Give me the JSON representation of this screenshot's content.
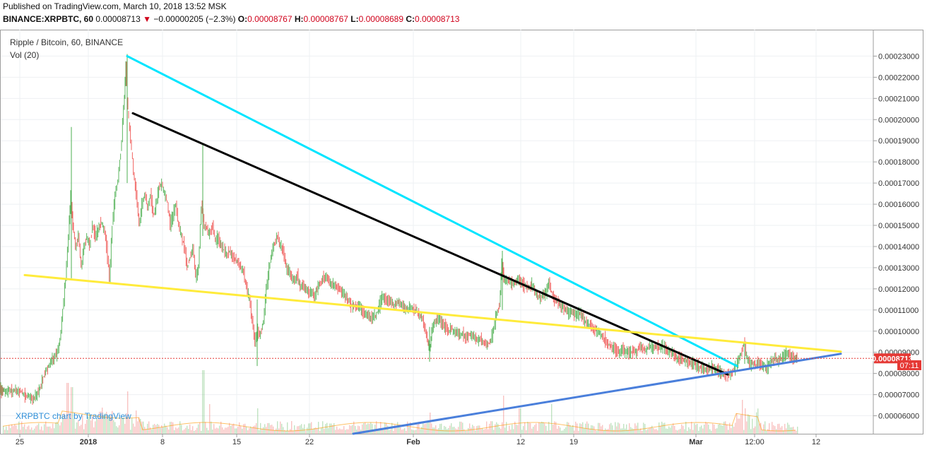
{
  "header": {
    "published": "Published on TradingView.com, March 10, 2018 13:52 MSK",
    "symbol": "BINANCE:XRPBTC, 60",
    "last": "0.00008713",
    "change_arrow": "▼",
    "change": "−0.00000205 (−2.3%)",
    "o_label": "O:",
    "o": "0.00008767",
    "h_label": "H:",
    "h": "0.00008767",
    "l_label": "L:",
    "l": "0.00008689",
    "c_label": "C:",
    "c": "0.00008713"
  },
  "legend": {
    "title": "Ripple / Bitcoin, 60, BINANCE",
    "vol": "Vol (20)"
  },
  "watermark": "XRPBTC chart by TradingView",
  "chart_data": {
    "type": "line",
    "title": "Ripple / Bitcoin, 60, BINANCE",
    "y_ticks": [
      "0.00023000",
      "0.00022000",
      "0.00021000",
      "0.00020000",
      "0.00019000",
      "0.00018000",
      "0.00017000",
      "0.00016000",
      "0.00015000",
      "0.00014000",
      "0.00013000",
      "0.00012000",
      "0.00011000",
      "0.00010000",
      "0.00009000",
      "0.00008000",
      "0.00007000",
      "0.00006000"
    ],
    "y_tick_values": [
      0.00023,
      0.00022,
      0.00021,
      0.0002,
      0.00019,
      0.00018,
      0.00017,
      0.00016,
      0.00015,
      0.00014,
      0.00013,
      0.00012,
      0.00011,
      0.0001,
      9e-05,
      8e-05,
      7e-05,
      6e-05
    ],
    "x_ticks": [
      "25",
      "2018",
      "8",
      "15",
      "22",
      "Feb",
      "12",
      "19",
      "Mar",
      "12:00",
      "12"
    ],
    "ylim": [
      5.15e-05,
      0.0002425
    ],
    "last_price_label": "0.00008713",
    "last_price": 8.713e-05,
    "countdown_label": "07:11",
    "price_series": {
      "name": "XRPBTC",
      "points": [
        [
          0,
          7.25e-05
        ],
        [
          3,
          7.18e-05
        ],
        [
          6,
          7.22e-05
        ],
        [
          10,
          7.1e-05
        ],
        [
          14,
          7.22e-05
        ],
        [
          18,
          7.15e-05
        ],
        [
          22,
          7.25e-05
        ],
        [
          26,
          7.12e-05
        ],
        [
          30,
          7.2e-05
        ],
        [
          34,
          7e-05
        ],
        [
          38,
          6.85e-05
        ],
        [
          42,
          7.02e-05
        ],
        [
          46,
          6.72e-05
        ],
        [
          50,
          6.9e-05
        ],
        [
          54,
          7.05e-05
        ],
        [
          58,
          7.4e-05
        ],
        [
          62,
          7.8e-05
        ],
        [
          66,
          8.1e-05
        ],
        [
          70,
          8.4e-05
        ],
        [
          74,
          8.6e-05
        ],
        [
          78,
          8.8e-05
        ],
        [
          82,
          9e-05
        ],
        [
          86,
          9.5e-05
        ],
        [
          90,
          0.00011
        ],
        [
          94,
          0.000125
        ],
        [
          98,
          0.000145
        ],
        [
          101,
          0.000165
        ],
        [
          104,
          0.00015
        ],
        [
          108,
          0.00014
        ],
        [
          112,
          0.000145
        ],
        [
          116,
          0.00013
        ],
        [
          120,
          0.00014
        ],
        [
          124,
          0.000145
        ],
        [
          128,
          0.00014
        ],
        [
          132,
          0.00015
        ],
        [
          136,
          0.000145
        ],
        [
          140,
          0.000148
        ],
        [
          144,
          0.000152
        ],
        [
          148,
          0.000148
        ],
        [
          152,
          0.00014
        ],
        [
          156,
          0.000125
        ],
        [
          160,
          0.00015
        ],
        [
          164,
          0.000165
        ],
        [
          168,
          0.000172
        ],
        [
          172,
          0.000185
        ],
        [
          176,
          0.000205
        ],
        [
          179,
          0.000225
        ],
        [
          182,
          0.000205
        ],
        [
          186,
          0.00019
        ],
        [
          190,
          0.000175
        ],
        [
          194,
          0.000165
        ],
        [
          198,
          0.00015
        ],
        [
          202,
          0.00016
        ],
        [
          206,
          0.000165
        ],
        [
          210,
          0.000158
        ],
        [
          214,
          0.000165
        ],
        [
          218,
          0.000155
        ],
        [
          222,
          0.00016
        ],
        [
          226,
          0.000168
        ],
        [
          230,
          0.00017
        ],
        [
          234,
          0.000165
        ],
        [
          238,
          0.00016
        ],
        [
          242,
          0.00015
        ],
        [
          246,
          0.000155
        ],
        [
          250,
          0.00016
        ],
        [
          254,
          0.00015
        ],
        [
          258,
          0.000145
        ],
        [
          262,
          0.00014
        ],
        [
          266,
          0.00013
        ],
        [
          270,
          0.000135
        ],
        [
          274,
          0.00014
        ],
        [
          278,
          0.000125
        ],
        [
          282,
          0.00013
        ],
        [
          286,
          0.00016
        ],
        [
          290,
          0.00015
        ],
        [
          294,
          0.000148
        ],
        [
          298,
          0.000145
        ],
        [
          302,
          0.00015
        ],
        [
          306,
          0.000142
        ],
        [
          310,
          0.000145
        ],
        [
          314,
          0.00014
        ],
        [
          318,
          0.000138
        ],
        [
          322,
          0.000136
        ],
        [
          326,
          0.000138
        ],
        [
          330,
          0.000135
        ],
        [
          334,
          0.000134
        ],
        [
          338,
          0.000132
        ],
        [
          342,
          0.00013
        ],
        [
          346,
          0.000128
        ],
        [
          350,
          0.00012
        ],
        [
          354,
          0.000115
        ],
        [
          358,
          0.000105
        ],
        [
          362,
          9.5e-05
        ],
        [
          366,
          0.0001
        ],
        [
          370,
          9.8e-05
        ],
        [
          374,
          0.000105
        ],
        [
          378,
          0.00012
        ],
        [
          382,
          0.00013
        ],
        [
          386,
          0.000138
        ],
        [
          390,
          0.000142
        ],
        [
          394,
          0.000145
        ],
        [
          398,
          0.00014
        ],
        [
          402,
          0.000138
        ],
        [
          406,
          0.00013
        ],
        [
          410,
          0.000128
        ],
        [
          414,
          0.000125
        ],
        [
          418,
          0.000124
        ],
        [
          422,
          0.000126
        ],
        [
          426,
          0.00012
        ],
        [
          430,
          0.000122
        ],
        [
          434,
          0.00012
        ],
        [
          438,
          0.000118
        ],
        [
          442,
          0.000118
        ],
        [
          446,
          0.000116
        ],
        [
          450,
          0.00012
        ],
        [
          454,
          0.000122
        ],
        [
          458,
          0.000125
        ],
        [
          462,
          0.000126
        ],
        [
          466,
          0.000124
        ],
        [
          470,
          0.000122
        ],
        [
          474,
          0.000122
        ],
        [
          478,
          0.00012
        ],
        [
          482,
          0.00012
        ],
        [
          486,
          0.000118
        ],
        [
          490,
          0.000116
        ],
        [
          494,
          0.000115
        ],
        [
          498,
          0.000112
        ],
        [
          502,
          0.000112
        ],
        [
          506,
          0.000111
        ],
        [
          510,
          0.000112
        ],
        [
          514,
          0.00011
        ],
        [
          518,
          0.000108
        ],
        [
          522,
          0.000108
        ],
        [
          526,
          0.000106
        ],
        [
          530,
          0.000107
        ],
        [
          534,
          0.000108
        ],
        [
          538,
          0.000112
        ],
        [
          542,
          0.000116
        ],
        [
          546,
          0.000115
        ],
        [
          550,
          0.000114
        ],
        [
          554,
          0.000114
        ],
        [
          558,
          0.000112
        ],
        [
          562,
          0.000113
        ],
        [
          566,
          0.000114
        ],
        [
          570,
          0.000112
        ],
        [
          574,
          0.000111
        ],
        [
          578,
          0.00011
        ],
        [
          582,
          0.000112
        ],
        [
          586,
          0.00011
        ],
        [
          590,
          0.00011
        ],
        [
          594,
          0.000108
        ],
        [
          598,
          0.000106
        ],
        [
          602,
          0.000102
        ],
        [
          606,
          9.6e-05
        ],
        [
          609,
          9.1e-05
        ],
        [
          612,
          0.0001
        ],
        [
          616,
          0.000104
        ],
        [
          620,
          0.000106
        ],
        [
          624,
          0.000105
        ],
        [
          628,
          0.000103
        ],
        [
          632,
          0.000102
        ],
        [
          636,
          0.0001
        ],
        [
          640,
          0.000101
        ],
        [
          644,
          0.0001
        ],
        [
          648,
          9.9e-05
        ],
        [
          652,
          9.8e-05
        ],
        [
          656,
          9.9e-05
        ],
        [
          660,
          9.7e-05
        ],
        [
          664,
          9.8e-05
        ],
        [
          668,
          9.8e-05
        ],
        [
          672,
          9.7e-05
        ],
        [
          676,
          9.6e-05
        ],
        [
          680,
          9.6e-05
        ],
        [
          684,
          9.5e-05
        ],
        [
          688,
          9.4e-05
        ],
        [
          692,
          9.4e-05
        ],
        [
          696,
          9.6e-05
        ],
        [
          700,
          0.000102
        ],
        [
          704,
          0.000108
        ],
        [
          708,
          0.000112
        ],
        [
          711,
          0.000132
        ],
        [
          714,
          0.000125
        ],
        [
          718,
          0.000123
        ],
        [
          722,
          0.000124
        ],
        [
          726,
          0.000122
        ],
        [
          730,
          0.000123
        ],
        [
          734,
          0.000124
        ],
        [
          738,
          0.000123
        ],
        [
          742,
          0.000122
        ],
        [
          746,
          0.000121
        ],
        [
          750,
          0.00012
        ],
        [
          754,
          0.000122
        ],
        [
          758,
          0.000119
        ],
        [
          762,
          0.000117
        ],
        [
          766,
          0.000116
        ],
        [
          770,
          0.000117
        ],
        [
          774,
          0.000118
        ],
        [
          778,
          0.000123
        ],
        [
          782,
          0.000118
        ],
        [
          786,
          0.000115
        ],
        [
          790,
          0.000114
        ],
        [
          794,
          0.000112
        ],
        [
          798,
          0.000111
        ],
        [
          802,
          0.00011
        ],
        [
          806,
          0.000108
        ],
        [
          810,
          0.00011
        ],
        [
          814,
          0.000108
        ],
        [
          818,
          0.000107
        ],
        [
          822,
          0.000109
        ],
        [
          826,
          0.000106
        ],
        [
          830,
          0.000104
        ],
        [
          834,
          0.000103
        ],
        [
          838,
          0.000102
        ],
        [
          842,
          0.000101
        ],
        [
          846,
          0.0001
        ],
        [
          850,
          9.9e-05
        ],
        [
          854,
          9.7e-05
        ],
        [
          858,
          9.6e-05
        ],
        [
          862,
          9.4e-05
        ],
        [
          866,
          9.3e-05
        ],
        [
          870,
          9.2e-05
        ],
        [
          874,
          9.1e-05
        ],
        [
          878,
          9e-05
        ],
        [
          882,
          9.1e-05
        ],
        [
          886,
          9e-05
        ],
        [
          890,
          9e-05
        ],
        [
          894,
          9e-05
        ],
        [
          898,
          9.1e-05
        ],
        [
          902,
          9e-05
        ],
        [
          906,
          9.3e-05
        ],
        [
          910,
          9.2e-05
        ],
        [
          914,
          9.1e-05
        ],
        [
          918,
          9.2e-05
        ],
        [
          922,
          9.3e-05
        ],
        [
          926,
          9.2e-05
        ],
        [
          930,
          9.3e-05
        ],
        [
          934,
          9.2e-05
        ],
        [
          938,
          9.3e-05
        ],
        [
          942,
          9.2e-05
        ],
        [
          946,
          9.1e-05
        ],
        [
          950,
          9e-05
        ],
        [
          954,
          8.9e-05
        ],
        [
          958,
          8.8e-05
        ],
        [
          962,
          8.7e-05
        ],
        [
          966,
          8.7e-05
        ],
        [
          970,
          8.6e-05
        ],
        [
          974,
          8.6e-05
        ],
        [
          978,
          8.5e-05
        ],
        [
          982,
          8.5e-05
        ],
        [
          986,
          8.4e-05
        ],
        [
          990,
          8.3e-05
        ],
        [
          994,
          8.3e-05
        ],
        [
          998,
          8.2e-05
        ],
        [
          1002,
          8.2e-05
        ],
        [
          1006,
          8.2e-05
        ],
        [
          1010,
          8.3e-05
        ],
        [
          1014,
          8.2e-05
        ],
        [
          1018,
          8.1e-05
        ],
        [
          1022,
          8e-05
        ],
        [
          1026,
          8e-05
        ],
        [
          1030,
          7.9e-05
        ],
        [
          1034,
          8e-05
        ],
        [
          1038,
          8.1e-05
        ],
        [
          1042,
          8.3e-05
        ],
        [
          1046,
          8.6e-05
        ],
        [
          1050,
          9e-05
        ],
        [
          1054,
          9.4e-05
        ],
        [
          1058,
          8.8e-05
        ],
        [
          1062,
          8.4e-05
        ],
        [
          1066,
          8.5e-05
        ],
        [
          1070,
          8.4e-05
        ],
        [
          1074,
          8.5e-05
        ],
        [
          1078,
          8.4e-05
        ],
        [
          1082,
          8.4e-05
        ],
        [
          1086,
          8.2e-05
        ],
        [
          1090,
          8.5e-05
        ],
        [
          1094,
          8.6e-05
        ],
        [
          1098,
          8.7e-05
        ],
        [
          1102,
          8.6e-05
        ],
        [
          1106,
          8.7e-05
        ],
        [
          1110,
          8.8e-05
        ],
        [
          1114,
          9e-05
        ],
        [
          1118,
          8.9e-05
        ],
        [
          1122,
          8.8e-05
        ],
        [
          1126,
          8.7e-05
        ],
        [
          1129,
          8.71e-05
        ]
      ]
    },
    "volume_series": {
      "name": "Vol (20)",
      "spikes": [
        [
          95,
          0.6
        ],
        [
          101,
          0.55
        ],
        [
          180,
          0.5
        ],
        [
          287,
          0.75
        ],
        [
          296,
          0.35
        ],
        [
          364,
          0.3
        ],
        [
          608,
          0.25
        ],
        [
          712,
          0.45
        ],
        [
          735,
          0.3
        ],
        [
          780,
          0.35
        ],
        [
          1050,
          0.4
        ],
        [
          1054,
          0.3
        ],
        [
          1060,
          0.22
        ]
      ]
    },
    "trendlines": [
      {
        "name": "cyan-trendline",
        "color": "#00e5ff",
        "from": [
          180,
          0.00023
        ],
        "to": [
          1043,
          8.35e-05
        ]
      },
      {
        "name": "black-trendline",
        "color": "#000000",
        "from": [
          188,
          0.000203
        ],
        "to": [
          1030,
          7.95e-05
        ]
      },
      {
        "name": "yellow-trendline",
        "color": "#ffeb3b",
        "from": [
          35,
          0.0001265
        ],
        "to": [
          1190,
          9.03e-05
        ]
      },
      {
        "name": "blue-trendline",
        "color": "#4a7fdb",
        "from": [
          500,
          5.15e-05
        ],
        "to": [
          1190,
          8.93e-05
        ]
      }
    ],
    "colors": {
      "up": "#4caf50",
      "down": "#ef5350",
      "last_price": "#e53935"
    }
  }
}
